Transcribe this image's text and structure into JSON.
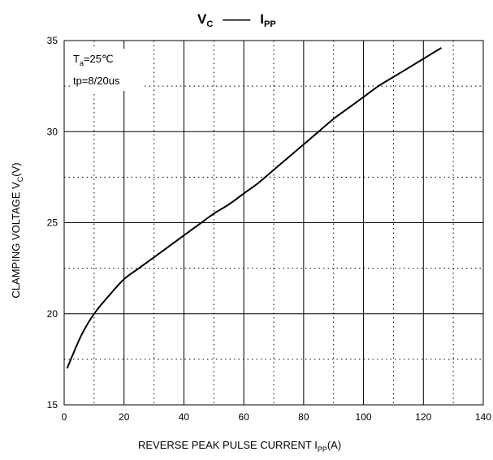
{
  "chart_data": {
    "type": "line",
    "title": {
      "lhs": "V",
      "lhs_sub": "C",
      "dash": "——",
      "rhs": "I",
      "rhs_sub": "PP"
    },
    "xlabel": {
      "text": "REVERSE PEAK PULSE CURRENT  I",
      "sub": "PP",
      "suffix": "(A)"
    },
    "ylabel": {
      "text": "CLAMPING VOLTAGE  V",
      "sub": "C",
      "suffix": "(V)"
    },
    "xlim": [
      0,
      140
    ],
    "ylim": [
      15,
      35
    ],
    "x_ticks": [
      0,
      20,
      40,
      60,
      80,
      100,
      120,
      140
    ],
    "y_ticks": [
      15,
      20,
      25,
      30,
      35
    ],
    "x_tick_labels": [
      "0",
      "20",
      "40",
      "60",
      "80",
      "100",
      "120",
      "140"
    ],
    "y_tick_labels": [
      "15",
      "20",
      "25",
      "30",
      "35"
    ],
    "grid": "major solid, minor dotted",
    "annotations": {
      "temp": {
        "prefix": "T",
        "sub": "a",
        "suffix": "=25℃"
      },
      "pulse": "tp=8/20us"
    },
    "series": [
      {
        "x": [
          1,
          3,
          6,
          10,
          15,
          20,
          25,
          30,
          35,
          40,
          45,
          50,
          55,
          60,
          65,
          70,
          75,
          80,
          85,
          90,
          95,
          100,
          105,
          110,
          115,
          120,
          123,
          126
        ],
        "y": [
          17.0,
          17.8,
          18.9,
          20.0,
          21.0,
          21.9,
          22.5,
          23.1,
          23.7,
          24.3,
          24.9,
          25.5,
          26.0,
          26.6,
          27.2,
          27.9,
          28.6,
          29.3,
          30.0,
          30.7,
          31.3,
          31.9,
          32.5,
          33.0,
          33.5,
          34.0,
          34.3,
          34.6
        ]
      }
    ],
    "colors": {
      "line": "#000000",
      "grid": "#000000",
      "background": "#ffffff"
    }
  }
}
